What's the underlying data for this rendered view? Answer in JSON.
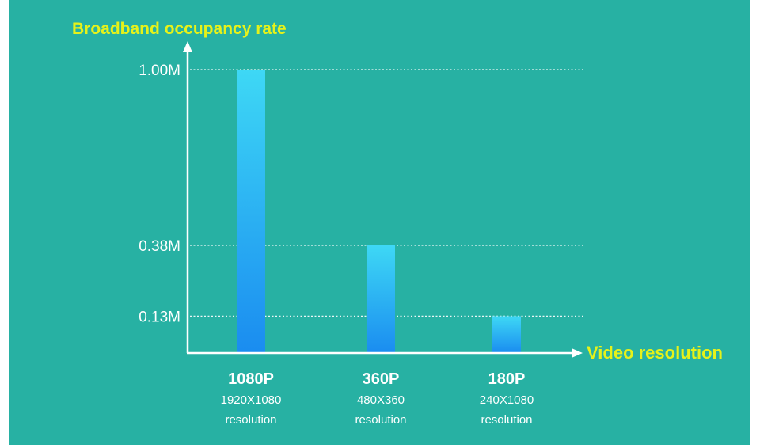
{
  "chart_data": {
    "type": "bar",
    "title": "",
    "ylabel": "Broadband occupancy rate",
    "xlabel": "Video resolution",
    "categories": [
      "1080P",
      "360P",
      "180P"
    ],
    "category_details": [
      [
        "1920X1080",
        "resolution"
      ],
      [
        "480X360",
        "resolution"
      ],
      [
        "240X1080",
        "resolution"
      ]
    ],
    "values": [
      1.0,
      0.38,
      0.13
    ],
    "value_unit": "M",
    "yticks": [
      {
        "value": 1.0,
        "label": "1.00M"
      },
      {
        "value": 0.38,
        "label": "0.38M"
      },
      {
        "value": 0.13,
        "label": "0.13M"
      }
    ],
    "grid": "dotted horizontal at ticks",
    "colors": {
      "background": "#27b1a3",
      "axis_title": "#e6f21a",
      "bar_top": "#3ed8f5",
      "bar_bottom": "#1a8cf0",
      "axis": "#ffffff"
    }
  }
}
